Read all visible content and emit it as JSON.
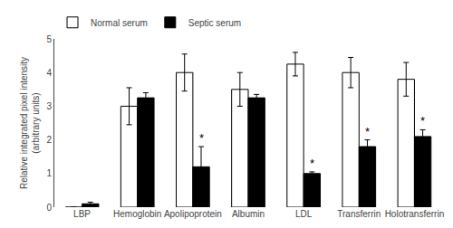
{
  "chart_data": {
    "type": "bar",
    "categories": [
      "LBP",
      "Hemoglobin",
      "Apolipoprotein",
      "Albumin",
      "LDL",
      "Transferrin",
      "Holotransferrin"
    ],
    "series": [
      {
        "name": "Normal serum",
        "color": "white",
        "values": [
          0.0,
          3.0,
          4.0,
          3.5,
          4.25,
          4.0,
          3.8
        ],
        "errors": [
          0.0,
          0.55,
          0.55,
          0.5,
          0.35,
          0.45,
          0.5
        ]
      },
      {
        "name": "Septic serum",
        "color": "black",
        "values": [
          0.1,
          3.25,
          1.2,
          3.25,
          1.0,
          1.8,
          2.1
        ],
        "errors": [
          0.05,
          0.15,
          0.6,
          0.1,
          0.05,
          0.2,
          0.2
        ]
      }
    ],
    "ylabel": "Relative integrated pixel intensity\n(arbitrary units)",
    "ylim": [
      0,
      5
    ],
    "yticks": [
      0,
      1,
      2,
      3,
      4,
      5
    ],
    "annotations": [
      {
        "category": "Apolipoprotein",
        "series": "Septic serum",
        "text": "*"
      },
      {
        "category": "LDL",
        "series": "Septic serum",
        "text": "*"
      },
      {
        "category": "Transferrin",
        "series": "Septic serum",
        "text": "*"
      },
      {
        "category": "Holotransferrin",
        "series": "Septic serum",
        "text": "*"
      }
    ],
    "legend": "upper left",
    "grid": false
  }
}
